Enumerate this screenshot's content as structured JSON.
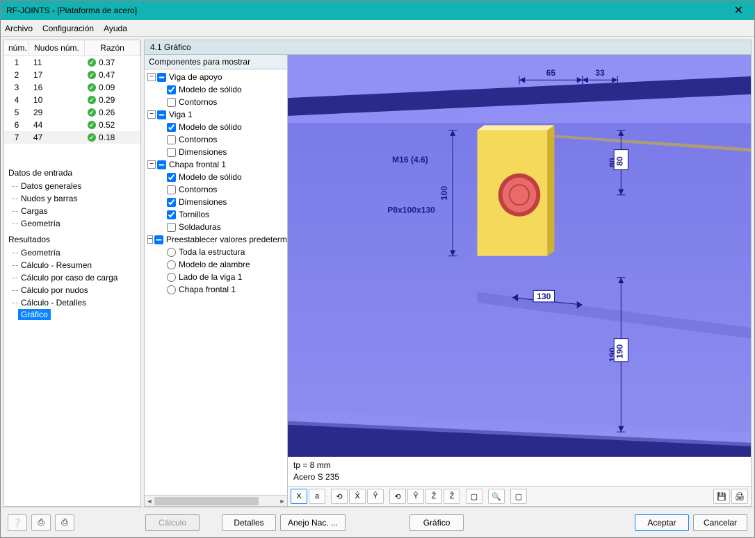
{
  "window": {
    "title": "RF-JOINTS - [Plataforma de acero]",
    "close_glyph": "✕"
  },
  "menubar": [
    "Archivo",
    "Configuración",
    "Ayuda"
  ],
  "results_table": {
    "headers": {
      "num": "núm.",
      "nudos": "Nudos núm.",
      "razon": "Razón"
    },
    "rows": [
      {
        "n": "1",
        "node": "11",
        "ratio": "0.37",
        "ok": true
      },
      {
        "n": "2",
        "node": "17",
        "ratio": "0.47",
        "ok": true
      },
      {
        "n": "3",
        "node": "16",
        "ratio": "0.09",
        "ok": true
      },
      {
        "n": "4",
        "node": "10",
        "ratio": "0.29",
        "ok": true
      },
      {
        "n": "5",
        "node": "29",
        "ratio": "0.26",
        "ok": true
      },
      {
        "n": "6",
        "node": "44",
        "ratio": "0.52",
        "ok": true
      },
      {
        "n": "7",
        "node": "47",
        "ratio": "0.18",
        "ok": true,
        "selected": true
      }
    ]
  },
  "nav": {
    "datos_title": "Datos de entrada",
    "datos_items": [
      "Datos generales",
      "Nudos y barras",
      "Cargas",
      "Geometría"
    ],
    "resultados_title": "Resultados",
    "resultados_items": [
      "Geometría",
      "Cálculo - Resumen",
      "Cálculo por caso de carga",
      "Cálculo por nudos",
      "Cálculo - Detalles",
      "Gráfico"
    ],
    "active_index": 5
  },
  "panel": {
    "title": "4.1 Gráfico",
    "tree_title": "Componentes para mostrar",
    "tree": [
      {
        "lvl": 0,
        "exp": "-",
        "chk": "ind",
        "label": "Viga de apoyo"
      },
      {
        "lvl": 1,
        "chk": true,
        "label": "Modelo de sólido"
      },
      {
        "lvl": 1,
        "chk": false,
        "label": "Contornos"
      },
      {
        "lvl": 0,
        "exp": "-",
        "chk": "ind",
        "label": "Viga 1"
      },
      {
        "lvl": 1,
        "chk": true,
        "label": "Modelo de sólido"
      },
      {
        "lvl": 1,
        "chk": false,
        "label": "Contornos"
      },
      {
        "lvl": 1,
        "chk": false,
        "label": "Dimensiones"
      },
      {
        "lvl": 0,
        "exp": "-",
        "chk": "ind",
        "label": "Chapa frontal 1"
      },
      {
        "lvl": 1,
        "chk": true,
        "label": "Modelo de sólido"
      },
      {
        "lvl": 1,
        "chk": false,
        "label": "Contornos"
      },
      {
        "lvl": 1,
        "chk": true,
        "label": "Dimensiones"
      },
      {
        "lvl": 1,
        "chk": true,
        "label": "Tornillos"
      },
      {
        "lvl": 1,
        "chk": false,
        "label": "Soldaduras"
      },
      {
        "lvl": 0,
        "exp": "-",
        "chk": "ind",
        "label": "Preestablecer valores predetermina"
      },
      {
        "lvl": 1,
        "radio": true,
        "label": "Toda la estructura"
      },
      {
        "lvl": 1,
        "radio": true,
        "label": "Modelo de alambre"
      },
      {
        "lvl": 1,
        "radio": true,
        "label": "Lado de la viga 1"
      },
      {
        "lvl": 1,
        "radio": true,
        "label": "Chapa frontal 1"
      }
    ]
  },
  "viewport": {
    "background_top": "#7b7be8",
    "background_bottom": "#8c8cf0",
    "beam_color": "#2a2a8a",
    "beam_light": "#9090f5",
    "plate_color": "#f5d95a",
    "plate_shadow": "#d0b030",
    "bolt_color": "#e86a6a",
    "bolt_dark": "#c04040",
    "dim_color": "#1a1a8a",
    "dims": {
      "d65": "65",
      "d33": "33",
      "d80": "80",
      "d100": "100",
      "d130": "130",
      "d190": "190"
    },
    "labels": {
      "m16": "M16 (4.6)",
      "plate": "P8x100x130"
    },
    "info1": "tp = 8 mm",
    "info2": "Acero S 235"
  },
  "toolbar_icons": [
    "X",
    "a",
    "⟲",
    "X̂",
    "Ŷ",
    "⟲",
    "Ŷ",
    "Ẑ",
    "Ẑ",
    "▢",
    "🔍",
    "▢"
  ],
  "toolbar_right": [
    "💾",
    "🖨"
  ],
  "bottombar": {
    "calc": "Cálculo",
    "detalles": "Detalles",
    "anejo": "Anejo Nac. ...",
    "grafico": "Gráfico",
    "aceptar": "Aceptar",
    "cancelar": "Cancelar"
  }
}
